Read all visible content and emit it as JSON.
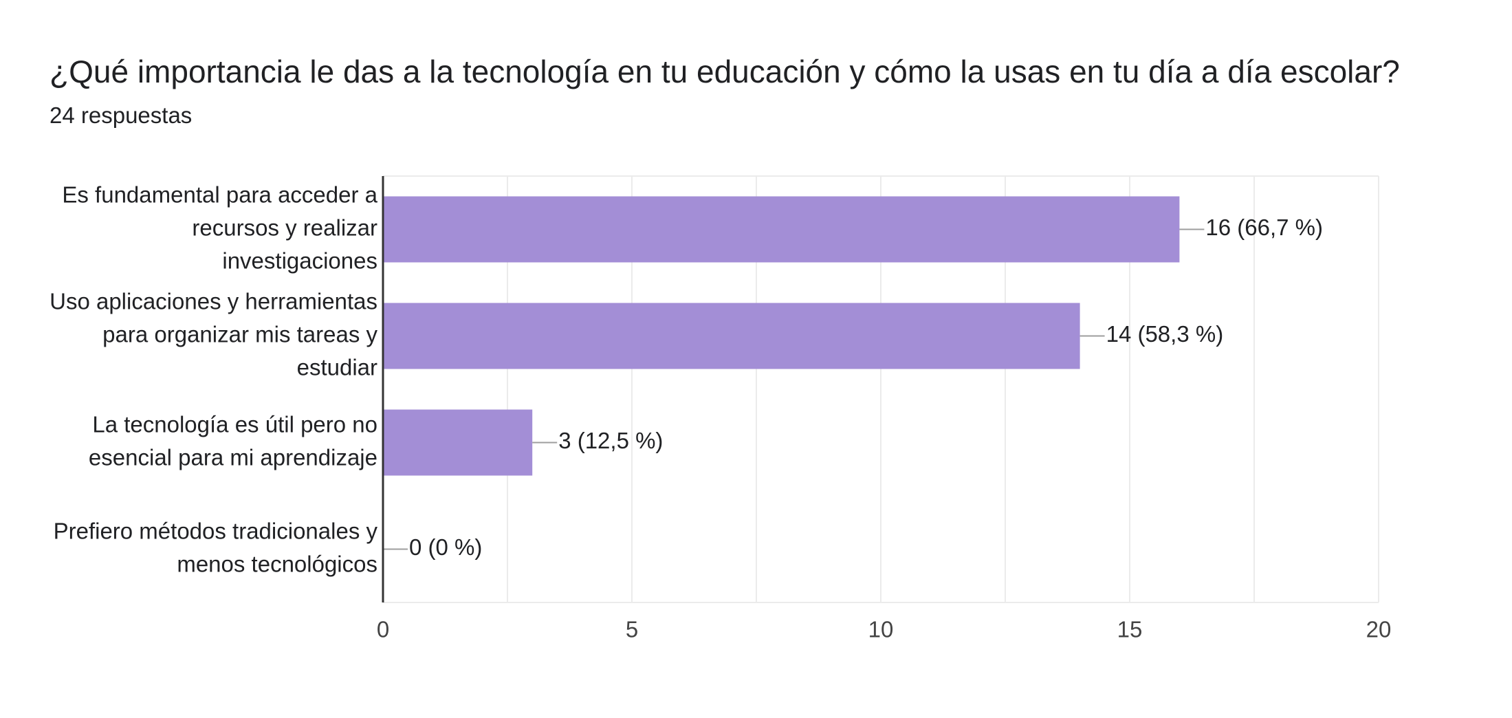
{
  "question": {
    "title": "¿Qué importancia le das a la tecnología en tu educación y cómo la usas en tu día a día escolar?",
    "responses": "24 respuestas"
  },
  "chart_data": {
    "type": "bar",
    "orientation": "horizontal",
    "categories": [
      [
        "Es fundamental para acceder a",
        "recursos y realizar",
        "investigaciones"
      ],
      [
        "Uso aplicaciones y herramientas",
        "para organizar mis tareas y",
        "estudiar"
      ],
      [
        "La tecnología es útil pero no",
        "esencial para mi aprendizaje"
      ],
      [
        "Prefiero métodos tradicionales y",
        "menos tecnológicos"
      ]
    ],
    "values": [
      16,
      14,
      3,
      0
    ],
    "data_labels": [
      "16 (66,7 %)",
      "14 (58,3 %)",
      "3 (12,5 %)",
      "0 (0 %)"
    ],
    "xlim": [
      0,
      20
    ],
    "x_ticks": [
      0,
      5,
      10,
      15,
      20
    ],
    "grid": true,
    "bar_color": "#a38ed6"
  }
}
